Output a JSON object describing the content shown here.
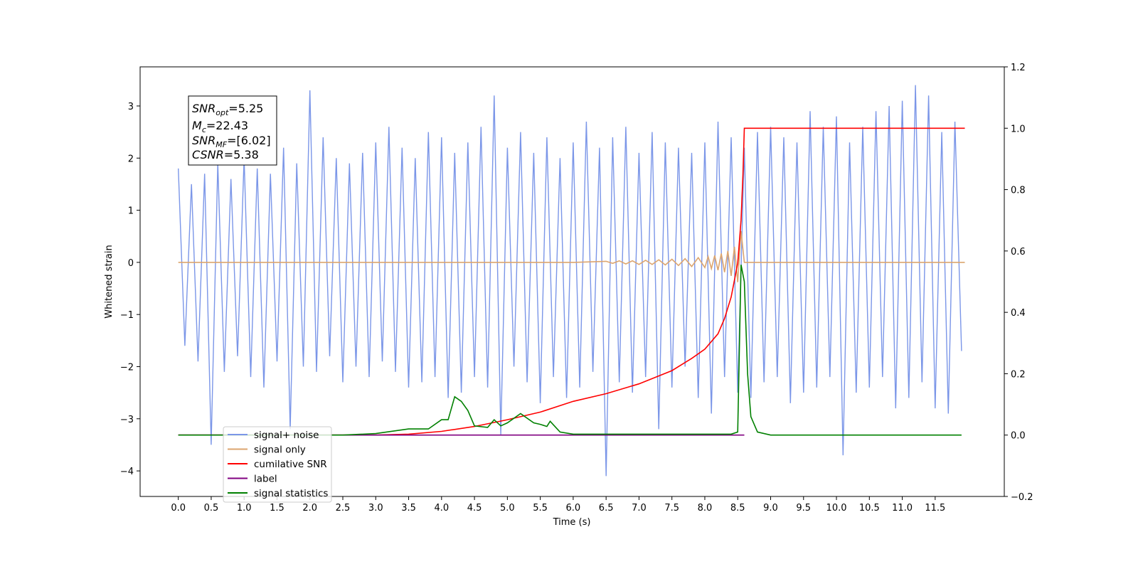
{
  "chart_data": {
    "type": "line",
    "xlabel": "Time (s)",
    "ylabel": "Whitened strain",
    "xlim": [
      -0.58,
      12.55
    ],
    "ylim": [
      -4.49,
      3.75
    ],
    "y2lim": [
      -0.2,
      1.2
    ],
    "xticks": [
      {
        "value": 0,
        "label": "0.0"
      },
      0.5,
      {
        "value": 1,
        "label": "1.0"
      },
      1.5,
      {
        "value": 2,
        "label": "2.0"
      },
      2.5,
      {
        "value": 3,
        "label": "3.0"
      },
      3.5,
      {
        "value": 4,
        "label": "4.0"
      },
      4.5,
      {
        "value": 5,
        "label": "5.0"
      },
      5.5,
      {
        "value": 6,
        "label": "6.0"
      },
      6.5,
      {
        "value": 7,
        "label": "7.0"
      },
      7.5,
      {
        "value": 8,
        "label": "8.0"
      },
      8.5,
      {
        "value": 9,
        "label": "9.0"
      },
      9.5,
      {
        "value": 10,
        "label": "10.0"
      },
      10.5,
      {
        "value": 11,
        "label": "11.0"
      },
      11.5
    ],
    "yticks": [
      {
        "value": -4,
        "label": "−4"
      },
      {
        "value": -3,
        "label": "−3"
      },
      {
        "value": -2,
        "label": "−2"
      },
      {
        "value": -1,
        "label": "−1"
      },
      0,
      1,
      2,
      3
    ],
    "y2ticks": [
      {
        "value": -0.2,
        "label": "−0.2"
      },
      {
        "value": 0,
        "label": "0.0"
      },
      0.2,
      0.4,
      0.6,
      0.8,
      {
        "value": 1,
        "label": "1.0"
      },
      1.2
    ],
    "legend": "lower left",
    "annotations": [
      {
        "main": "SNR",
        "sub": "opt",
        "rest": "=5.25"
      },
      {
        "main": "M",
        "sub": "c",
        "rest": "=22.43"
      },
      {
        "main": "SNR",
        "sub": "MF",
        "rest": "=[6.02]"
      },
      {
        "main": "CSNR",
        "sub": null,
        "rest": "=5.38"
      }
    ],
    "series": [
      {
        "name": "signal+ noise",
        "color": "#7b96e8",
        "x": [
          0.0,
          0.1,
          0.2,
          0.3,
          0.4,
          0.5,
          0.6,
          0.7,
          0.8,
          0.9,
          1.0,
          1.1,
          1.2,
          1.3,
          1.4,
          1.5,
          1.6,
          1.7,
          1.8,
          1.9,
          2.0,
          2.1,
          2.2,
          2.3,
          2.4,
          2.5,
          2.6,
          2.7,
          2.8,
          2.9,
          3.0,
          3.1,
          3.2,
          3.3,
          3.4,
          3.5,
          3.6,
          3.7,
          3.8,
          3.9,
          4.0,
          4.1,
          4.2,
          4.3,
          4.4,
          4.5,
          4.6,
          4.7,
          4.8,
          4.9,
          5.0,
          5.1,
          5.2,
          5.3,
          5.4,
          5.5,
          5.6,
          5.7,
          5.8,
          5.9,
          6.0,
          6.1,
          6.2,
          6.3,
          6.4,
          6.5,
          6.6,
          6.7,
          6.8,
          6.9,
          7.0,
          7.1,
          7.2,
          7.3,
          7.4,
          7.5,
          7.6,
          7.7,
          7.8,
          7.9,
          8.0,
          8.1,
          8.2,
          8.3,
          8.4,
          8.5,
          8.6,
          8.7,
          8.8,
          8.9,
          9.0,
          9.1,
          9.2,
          9.3,
          9.4,
          9.5,
          9.6,
          9.7,
          9.8,
          9.9,
          10.0,
          10.1,
          10.2,
          10.3,
          10.4,
          10.5,
          10.6,
          10.7,
          10.8,
          10.9,
          11.0,
          11.1,
          11.2,
          11.3,
          11.4,
          11.5,
          11.6,
          11.7,
          11.8,
          11.9
        ],
        "values": [
          1.8,
          -1.6,
          1.5,
          -1.9,
          1.7,
          -3.5,
          1.9,
          -2.1,
          1.6,
          -1.8,
          2.0,
          -2.2,
          1.8,
          -2.4,
          1.7,
          -1.9,
          2.2,
          -3.2,
          1.9,
          -2.0,
          3.3,
          -2.1,
          2.4,
          -1.8,
          2.0,
          -2.3,
          1.9,
          -2.0,
          2.1,
          -2.2,
          2.3,
          -1.9,
          2.6,
          -2.1,
          2.2,
          -2.4,
          2.0,
          -2.3,
          2.5,
          -2.2,
          2.4,
          -2.6,
          2.1,
          -2.5,
          2.3,
          -2.2,
          2.6,
          -2.4,
          3.2,
          -3.3,
          2.2,
          -2.0,
          2.5,
          -2.3,
          2.1,
          -2.7,
          2.4,
          -2.2,
          2.0,
          -2.6,
          2.3,
          -2.4,
          2.7,
          -2.1,
          2.2,
          -4.1,
          2.4,
          -2.3,
          2.6,
          -2.5,
          2.1,
          -2.2,
          2.5,
          -3.2,
          2.3,
          -2.4,
          2.2,
          -2.0,
          2.1,
          -2.6,
          2.3,
          -2.9,
          2.7,
          -2.2,
          2.4,
          -2.5,
          2.2,
          -2.6,
          2.5,
          -2.3,
          2.6,
          -2.2,
          2.4,
          -2.7,
          2.3,
          -2.5,
          2.9,
          -2.4,
          2.6,
          -2.2,
          2.8,
          -3.7,
          2.3,
          -2.5,
          2.6,
          -2.4,
          2.9,
          -2.2,
          3.0,
          -2.8,
          3.1,
          -2.6,
          3.4,
          -2.3,
          3.2,
          -2.8,
          2.5,
          -2.9,
          2.7,
          -1.7
        ]
      },
      {
        "name": "signal only",
        "color": "#dca56f",
        "x": [
          0,
          6,
          6.5,
          6.6,
          6.7,
          6.8,
          6.9,
          7.0,
          7.1,
          7.2,
          7.3,
          7.4,
          7.5,
          7.6,
          7.7,
          7.8,
          7.9,
          8.0,
          8.05,
          8.1,
          8.15,
          8.2,
          8.25,
          8.3,
          8.35,
          8.4,
          8.45,
          8.5,
          8.55,
          8.6,
          11.95
        ],
        "values": [
          0,
          0,
          0.02,
          -0.02,
          0.03,
          -0.03,
          0.03,
          -0.04,
          0.04,
          -0.04,
          0.05,
          -0.05,
          0.06,
          -0.06,
          0.07,
          -0.08,
          0.09,
          -0.1,
          0.11,
          -0.12,
          0.13,
          -0.15,
          0.17,
          -0.19,
          0.22,
          -0.26,
          0.3,
          -0.38,
          0.6,
          0,
          0
        ]
      },
      {
        "name": "cumilative SNR",
        "color": "#ff0000",
        "axis": "y2",
        "x": [
          0,
          3,
          3.5,
          4,
          4.5,
          5,
          5.5,
          6,
          6.5,
          7,
          7.5,
          7.8,
          8,
          8.2,
          8.3,
          8.4,
          8.5,
          8.55,
          8.58,
          8.6,
          11.95
        ],
        "values": [
          0,
          0,
          0.003,
          0.012,
          0.028,
          0.05,
          0.075,
          0.11,
          0.135,
          0.167,
          0.21,
          0.25,
          0.28,
          0.33,
          0.38,
          0.45,
          0.56,
          0.7,
          0.85,
          1.0,
          1.0
        ]
      },
      {
        "name": "label",
        "color": "#800080",
        "axis": "y2",
        "x": [
          0,
          8.6
        ],
        "values": [
          0,
          0
        ]
      },
      {
        "name": "signal statistics",
        "color": "#008000",
        "axis": "y2",
        "x": [
          0,
          2.5,
          3.0,
          3.5,
          3.8,
          4.0,
          4.1,
          4.2,
          4.3,
          4.4,
          4.5,
          4.7,
          4.8,
          4.9,
          5.0,
          5.2,
          5.4,
          5.5,
          5.6,
          5.65,
          5.8,
          6.0,
          8.4,
          8.5,
          8.55,
          8.6,
          8.65,
          8.7,
          8.8,
          9.0,
          11.9
        ],
        "values": [
          0,
          0,
          0.005,
          0.02,
          0.02,
          0.05,
          0.05,
          0.125,
          0.11,
          0.08,
          0.03,
          0.025,
          0.05,
          0.03,
          0.04,
          0.07,
          0.04,
          0.035,
          0.028,
          0.045,
          0.01,
          0.003,
          0.003,
          0.01,
          0.555,
          0.5,
          0.2,
          0.06,
          0.01,
          0,
          0
        ]
      }
    ]
  }
}
